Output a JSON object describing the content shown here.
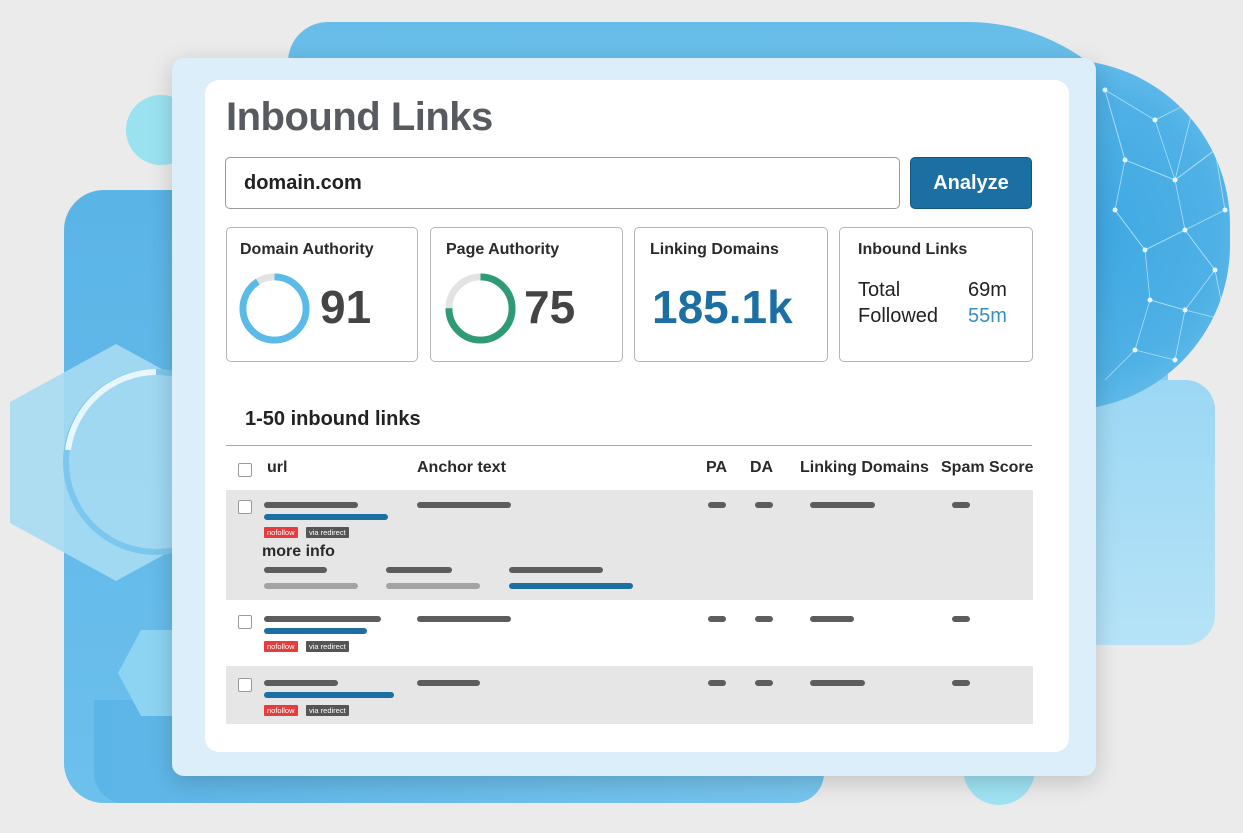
{
  "header": {
    "title": "Inbound Links"
  },
  "search": {
    "value": "domain.com",
    "button_label": "Analyze"
  },
  "metrics": {
    "domain_authority": {
      "label": "Domain Authority",
      "value": "91",
      "ring_fill": 0.91,
      "color": "#5bbbe8"
    },
    "page_authority": {
      "label": "Page Authority",
      "value": "75",
      "ring_fill": 0.75,
      "color": "#2e9a76"
    },
    "linking_domains": {
      "label": "Linking Domains",
      "value": "185.1k",
      "color": "#1b6fa3"
    },
    "inbound_links": {
      "label": "Inbound Links",
      "total_label": "Total",
      "total_value": "69m",
      "followed_label": "Followed",
      "followed_value": "55m",
      "accent": "#3a8fc2"
    }
  },
  "table": {
    "heading": "1-50 inbound links",
    "columns": {
      "url": "url",
      "anchor": "Anchor text",
      "pa": "PA",
      "da": "DA",
      "linking": "Linking Domains",
      "spam": "Spam Score"
    },
    "tags": {
      "nofollow": "nofollow",
      "redirect": "via redirect"
    },
    "more_info": "more info"
  },
  "colors": {
    "accent": "#1b6fa3",
    "title": "#575a5e"
  }
}
